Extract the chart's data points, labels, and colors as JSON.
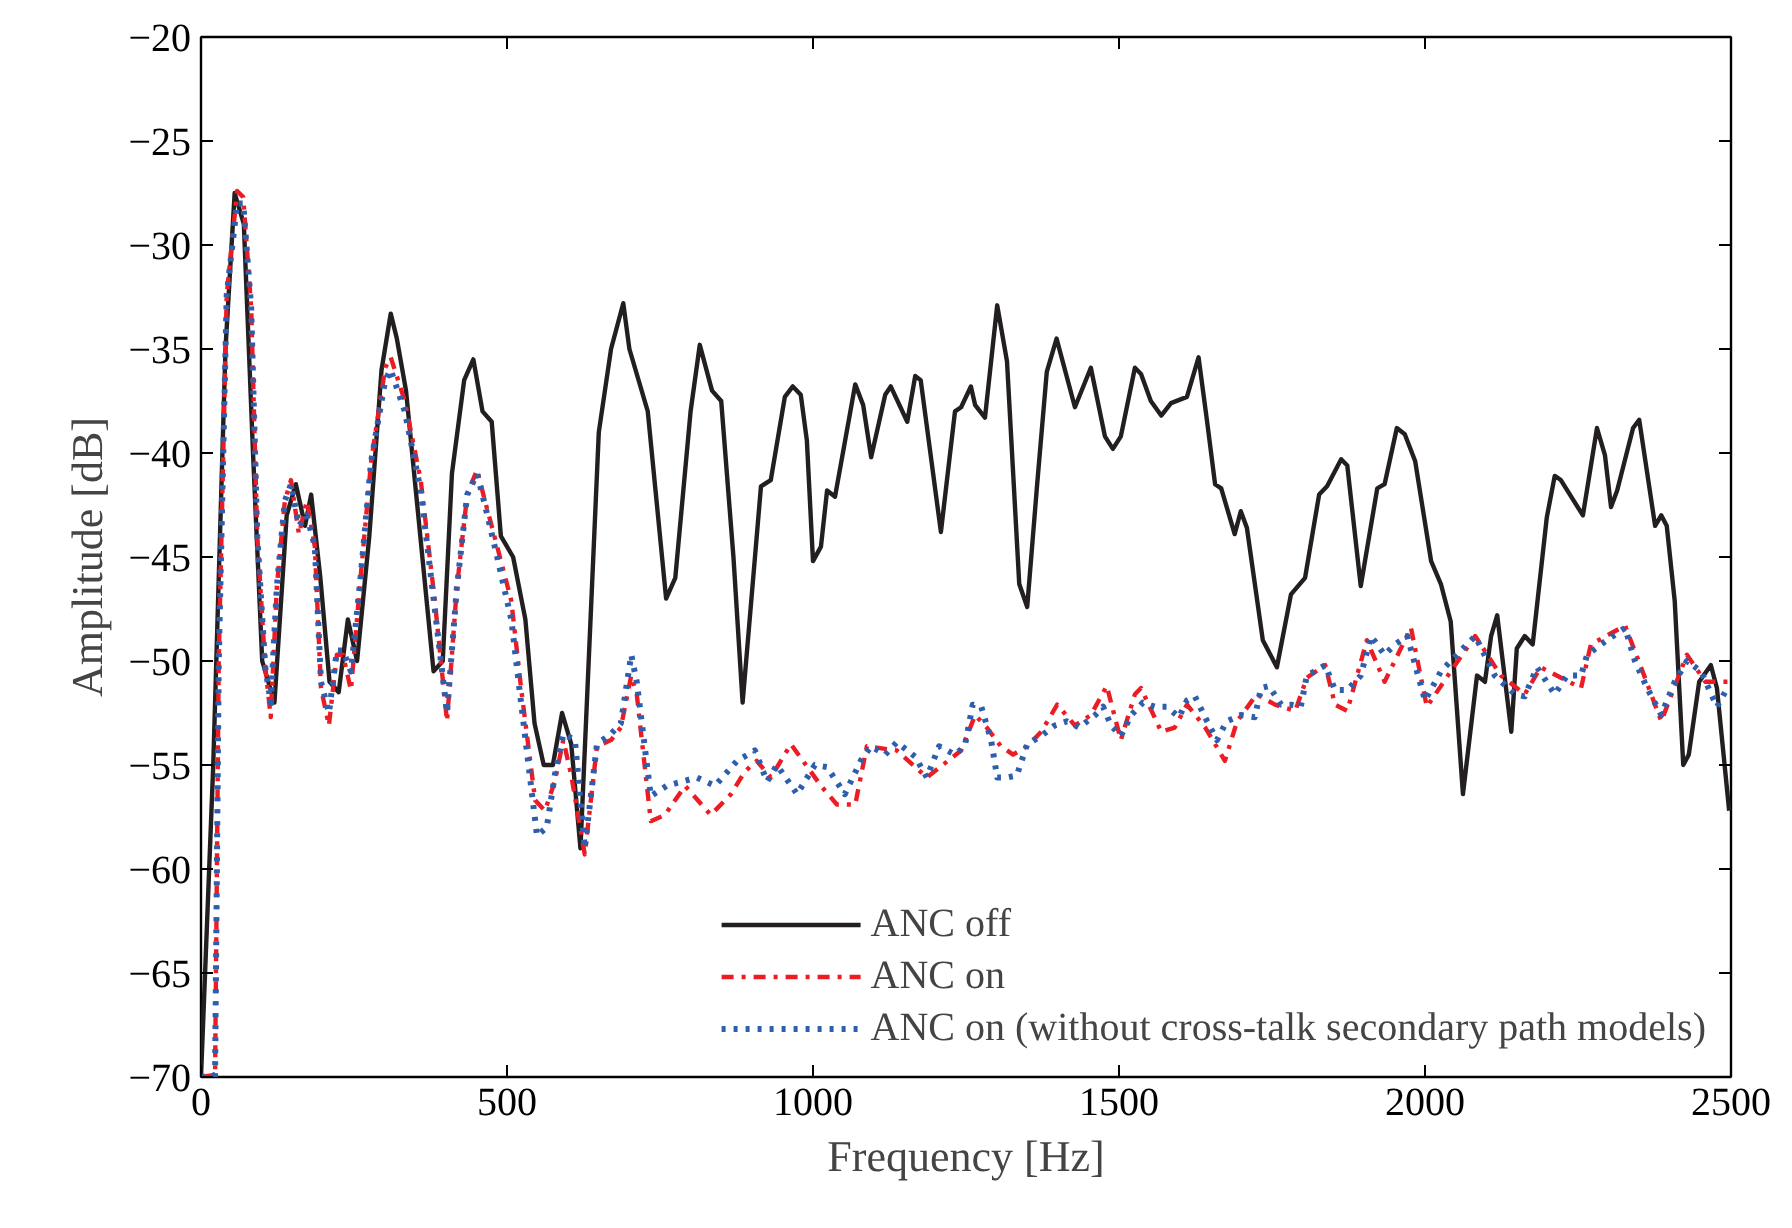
{
  "chart_data": {
    "type": "line",
    "xlabel": "Frequency [Hz]",
    "ylabel": "Amplitude [dB]",
    "xlim": [
      0,
      2500
    ],
    "ylim": [
      -70,
      -20
    ],
    "xticks": [
      0,
      500,
      1000,
      1500,
      2000,
      2500
    ],
    "yticks": [
      -70,
      -65,
      -60,
      -55,
      -50,
      -45,
      -40,
      -35,
      -30,
      -25,
      -20
    ],
    "grid": false,
    "legend": "bottom",
    "marker": "none",
    "series": [
      {
        "name": "ANC off",
        "color": "#231f20",
        "line_style": "solid",
        "x": [
          0,
          20,
          40,
          55,
          70,
          85,
          100,
          120,
          140,
          155,
          170,
          180,
          195,
          210,
          225,
          240,
          255,
          275,
          295,
          310,
          320,
          335,
          355,
          380,
          395,
          410,
          430,
          445,
          460,
          475,
          490,
          510,
          530,
          545,
          560,
          575,
          590,
          605,
          620,
          650,
          670,
          690,
          700,
          730,
          760,
          775,
          800,
          815,
          835,
          850,
          870,
          885,
          915,
          931,
          954,
          967,
          980,
          990,
          1000,
          1013,
          1023,
          1036,
          1069,
          1082,
          1095,
          1118,
          1127,
          1154,
          1167,
          1176,
          1209,
          1232,
          1242,
          1258,
          1265,
          1281,
          1301,
          1317,
          1337,
          1350,
          1366,
          1382,
          1398,
          1428,
          1454,
          1477,
          1490,
          1503,
          1526,
          1536,
          1552,
          1569,
          1585,
          1611,
          1630,
          1644,
          1657,
          1667,
          1689,
          1699,
          1709,
          1735,
          1758,
          1781,
          1804,
          1827,
          1840,
          1863,
          1873,
          1895,
          1922,
          1934,
          1954,
          1967,
          1984,
          2010,
          2026,
          2042,
          2062,
          2085,
          2098,
          2108,
          2118,
          2141,
          2150,
          2163,
          2176,
          2199,
          2212,
          2222,
          2258,
          2281,
          2294,
          2304,
          2314,
          2340,
          2350,
          2376,
          2386,
          2395,
          2408,
          2422,
          2431,
          2448,
          2467,
          2477,
          2497
        ],
        "values": [
          -70,
          -55,
          -35,
          -27.5,
          -29,
          -40,
          -50,
          -52,
          -43,
          -41.5,
          -43.5,
          -42,
          -46,
          -51,
          -51.5,
          -48,
          -50,
          -44,
          -36,
          -33.3,
          -34.5,
          -37,
          -43,
          -50.5,
          -50,
          -41,
          -36.5,
          -35.5,
          -38,
          -38.5,
          -44,
          -45,
          -48,
          -53,
          -55,
          -55,
          -52.5,
          -54,
          -59,
          -39,
          -35,
          -32.8,
          -35,
          -38,
          -47,
          -46,
          -38,
          -34.8,
          -37,
          -37.5,
          -45,
          -52,
          -41.6,
          -41.3,
          -37.3,
          -36.8,
          -37.2,
          -39.4,
          -45.2,
          -44.5,
          -41.8,
          -42.1,
          -36.7,
          -37.7,
          -40.2,
          -37.2,
          -36.8,
          -38.5,
          -36.3,
          -36.5,
          -43.8,
          -38,
          -37.8,
          -36.8,
          -37.7,
          -38.3,
          -32.9,
          -35.6,
          -46.3,
          -47.4,
          -41.6,
          -36.1,
          -34.5,
          -37.8,
          -35.9,
          -39.2,
          -39.8,
          -39.2,
          -35.9,
          -36.2,
          -37.5,
          -38.2,
          -37.6,
          -37.3,
          -35.4,
          -38.5,
          -41.5,
          -41.7,
          -43.9,
          -42.8,
          -43.6,
          -49,
          -50.3,
          -46.8,
          -46,
          -42,
          -41.6,
          -40.3,
          -40.6,
          -46.4,
          -41.7,
          -41.5,
          -38.8,
          -39.1,
          -40.4,
          -45.2,
          -46.3,
          -48.1,
          -56.4,
          -50.7,
          -51,
          -48.8,
          -47.8,
          -53.4,
          -49.4,
          -48.8,
          -49.2,
          -43.1,
          -41.1,
          -41.3,
          -43,
          -38.8,
          -40.1,
          -42.6,
          -41.8,
          -38.8,
          -38.4,
          -43.5,
          -43,
          -43.5,
          -47.1,
          -55,
          -54.5,
          -51,
          -50.2,
          -51.3,
          -57.2
        ]
      },
      {
        "name": "ANC on",
        "color": "#ed1c24",
        "line_style": "dashdot",
        "x": [
          0,
          23,
          29,
          42,
          59,
          69,
          82,
          92,
          105,
          114,
          124,
          137,
          147,
          160,
          173,
          186,
          196,
          209,
          222,
          232,
          245,
          261,
          278,
          301,
          310,
          333,
          359,
          382,
          402,
          418,
          435,
          451,
          464,
          484,
          507,
          523,
          546,
          562,
          578,
          592,
          605,
          627,
          647,
          670,
          686,
          703,
          712,
          735,
          758,
          791,
          833,
          866,
          889,
          908,
          931,
          964,
          1013,
          1039,
          1069,
          1088,
          1137,
          1186,
          1242,
          1265,
          1284,
          1307,
          1327,
          1350,
          1373,
          1399,
          1428,
          1454,
          1480,
          1503,
          1526,
          1536,
          1569,
          1591,
          1611,
          1641,
          1673,
          1693,
          1725,
          1755,
          1788,
          1807,
          1837,
          1853,
          1873,
          1905,
          1934,
          1977,
          2003,
          2049,
          2082,
          2124,
          2163,
          2189,
          2255,
          2271,
          2327,
          2353,
          2386,
          2428,
          2458,
          2484,
          2500
        ],
        "values": [
          -70,
          -69.9,
          -50,
          -32.4,
          -27.4,
          -27.7,
          -33,
          -44,
          -50.3,
          -52.7,
          -46.4,
          -42.3,
          -41.3,
          -43.9,
          -42.3,
          -44.5,
          -51.3,
          -53.1,
          -49.7,
          -49.7,
          -51.4,
          -45.9,
          -40.4,
          -35.9,
          -35.4,
          -37.5,
          -41.3,
          -47.1,
          -52.9,
          -46.5,
          -42,
          -40.8,
          -42.3,
          -44.5,
          -47.1,
          -51.3,
          -56.7,
          -57.2,
          -55.8,
          -53.8,
          -55.5,
          -59.3,
          -54.1,
          -53.8,
          -53.2,
          -50.7,
          -51.6,
          -57.7,
          -57.4,
          -56,
          -57.4,
          -56.4,
          -55.3,
          -54.8,
          -55.6,
          -54,
          -56,
          -56.9,
          -56.9,
          -54.1,
          -54.3,
          -55.6,
          -54.3,
          -52.6,
          -53.2,
          -54.1,
          -54.5,
          -54.1,
          -53.4,
          -52.1,
          -53.1,
          -52.6,
          -51.2,
          -53.8,
          -51.6,
          -51.3,
          -53.4,
          -53.2,
          -52.1,
          -53.2,
          -54.8,
          -52.9,
          -51.6,
          -52.1,
          -52.4,
          -50.8,
          -50.2,
          -52.1,
          -52.4,
          -49,
          -51,
          -48.4,
          -52.2,
          -50.2,
          -48.8,
          -50.7,
          -51.6,
          -50.3,
          -51.3,
          -49.2,
          -48.3,
          -50.3,
          -52.9,
          -49.7,
          -51,
          -51,
          -51
        ]
      },
      {
        "name": "ANC on (without cross-talk secondary path models)",
        "color": "#2e5fad",
        "line_style": "dotted",
        "x": [
          0,
          23,
          29,
          42,
          59,
          69,
          82,
          92,
          105,
          114,
          124,
          137,
          147,
          160,
          173,
          186,
          196,
          209,
          222,
          232,
          245,
          261,
          278,
          301,
          310,
          333,
          359,
          382,
          402,
          418,
          435,
          451,
          464,
          484,
          507,
          523,
          549,
          565,
          578,
          592,
          611,
          627,
          647,
          670,
          686,
          703,
          712,
          735,
          761,
          810,
          840,
          876,
          905,
          925,
          941,
          974,
          1003,
          1023,
          1052,
          1078,
          1095,
          1118,
          1137,
          1167,
          1186,
          1206,
          1232,
          1248,
          1261,
          1275,
          1291,
          1301,
          1317,
          1333,
          1350,
          1373,
          1395,
          1415,
          1435,
          1461,
          1474,
          1487,
          1503,
          1520,
          1539,
          1559,
          1578,
          1598,
          1611,
          1624,
          1644,
          1660,
          1676,
          1699,
          1722,
          1732,
          1745,
          1765,
          1781,
          1797,
          1807,
          1837,
          1853,
          1873,
          1895,
          1912,
          1934,
          1951,
          1971,
          2000,
          2026,
          2052,
          2082,
          2114,
          2147,
          2163,
          2183,
          2212,
          2232,
          2255,
          2265,
          2297,
          2327,
          2343,
          2363,
          2386,
          2408,
          2428,
          2451,
          2477,
          2494
        ],
        "values": [
          -70,
          -69.9,
          -50,
          -32.4,
          -28,
          -28,
          -33,
          -44,
          -50.3,
          -52,
          -46.4,
          -42.3,
          -41.5,
          -43.5,
          -43,
          -44.5,
          -51,
          -52.5,
          -49.5,
          -49.5,
          -50.5,
          -45.9,
          -40.4,
          -36.5,
          -36,
          -38,
          -41.8,
          -47.5,
          -52.5,
          -46.5,
          -42,
          -41,
          -42.5,
          -45,
          -48,
          -52,
          -58.4,
          -58,
          -55.5,
          -53.5,
          -53.8,
          -59,
          -54,
          -53.5,
          -53,
          -49.7,
          -51,
          -56.5,
          -56,
          -55.6,
          -56,
          -54.8,
          -54.3,
          -55.8,
          -55,
          -56.4,
          -55,
          -55.1,
          -56.4,
          -54.8,
          -54.1,
          -54.5,
          -53.9,
          -54.6,
          -55.6,
          -54.1,
          -54.5,
          -54.1,
          -52.1,
          -52.2,
          -53.8,
          -55.6,
          -55.6,
          -55.5,
          -54,
          -53.6,
          -53.1,
          -52.9,
          -53.2,
          -52.6,
          -52.2,
          -53.1,
          -53.6,
          -52.6,
          -52,
          -52.2,
          -52.2,
          -52.7,
          -51.9,
          -51.7,
          -52.9,
          -53.8,
          -52.9,
          -52.6,
          -52.7,
          -51.3,
          -51.2,
          -52.1,
          -52.1,
          -52.2,
          -50.7,
          -50.2,
          -51.4,
          -51.4,
          -50.7,
          -48.8,
          -49.7,
          -49.2,
          -48.8,
          -51.9,
          -50.5,
          -49.7,
          -48.8,
          -50.7,
          -51.6,
          -51.7,
          -50.3,
          -51.6,
          -50.7,
          -50.7,
          -49.7,
          -49,
          -48.4,
          -50,
          -51.3,
          -52.6,
          -51,
          -50,
          -50.5,
          -52.2,
          -51.3
        ]
      }
    ]
  }
}
